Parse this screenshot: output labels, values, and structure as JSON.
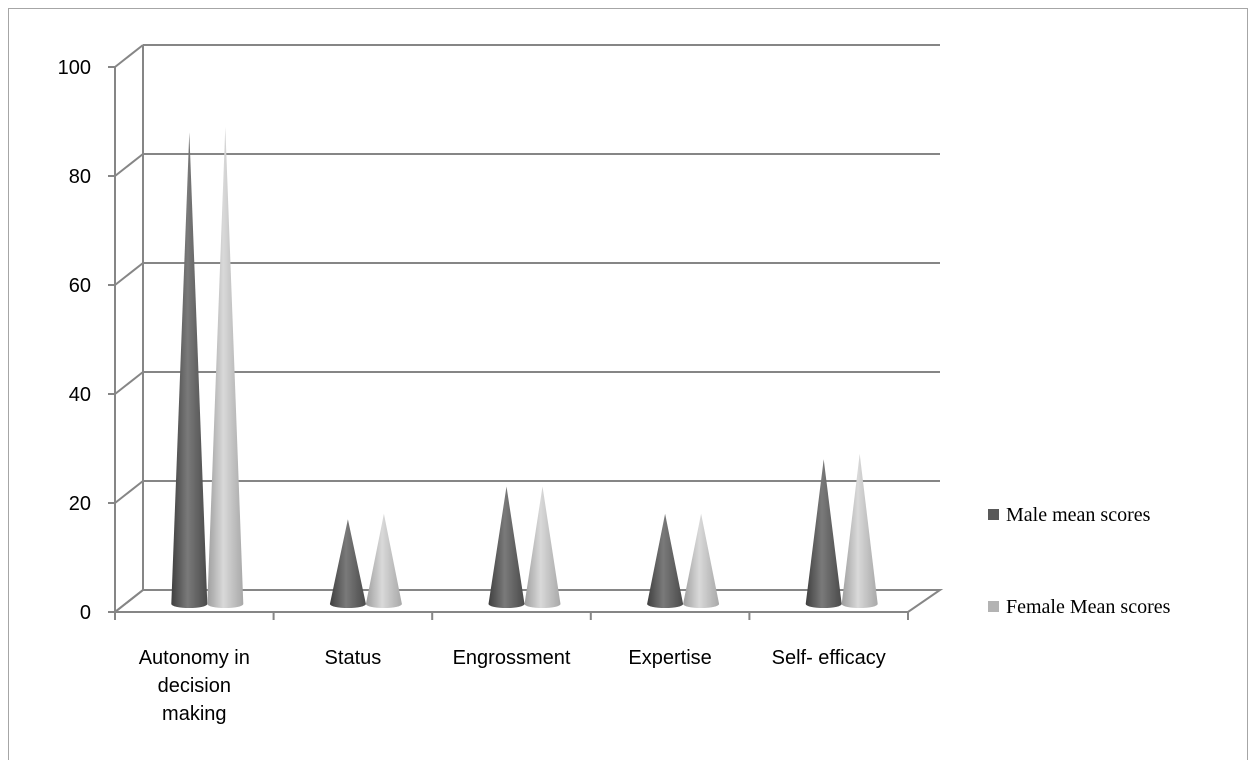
{
  "chart_data": {
    "type": "bar",
    "title": "",
    "xlabel": "",
    "ylabel": "",
    "ylim": [
      0,
      100
    ],
    "yticks": [
      "0",
      "20",
      "40",
      "60",
      "80",
      "100"
    ],
    "categories": [
      [
        "Autonomy in",
        "decision",
        "making"
      ],
      [
        "Status"
      ],
      [
        "Engrossment"
      ],
      [
        "Expertise"
      ],
      [
        "Self- efficacy"
      ]
    ],
    "series": [
      {
        "name": "Male mean scores",
        "color": "#595959",
        "values": [
          86,
          15,
          21,
          16,
          26
        ]
      },
      {
        "name": "Female Mean scores",
        "color": "#b3b3b3",
        "values": [
          87,
          16,
          21,
          16,
          27
        ]
      }
    ],
    "grid": true,
    "legend_position": "right",
    "mark_shape": "cone"
  }
}
